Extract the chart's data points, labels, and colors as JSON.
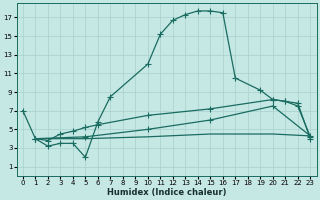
{
  "xlabel": "Humidex (Indice chaleur)",
  "background_color": "#c5e8e5",
  "grid_color": "#a8d0cc",
  "line_color": "#1a6b60",
  "xlim": [
    -0.5,
    23.5
  ],
  "ylim": [
    0,
    18.5
  ],
  "xticks": [
    0,
    1,
    2,
    3,
    4,
    5,
    6,
    7,
    8,
    9,
    10,
    11,
    12,
    13,
    14,
    15,
    16,
    17,
    18,
    19,
    20,
    21,
    22,
    23
  ],
  "yticks": [
    1,
    3,
    5,
    7,
    9,
    11,
    13,
    15,
    17
  ],
  "series1_x": [
    0,
    1,
    2,
    3,
    4,
    5,
    6,
    7,
    10,
    11,
    12,
    13,
    14,
    15,
    16,
    17,
    19,
    20,
    21,
    22,
    23
  ],
  "series1_y": [
    7,
    4,
    3.2,
    3.5,
    3.5,
    2,
    5.8,
    8.5,
    12.0,
    15.2,
    16.7,
    17.3,
    17.7,
    17.7,
    17.5,
    10.5,
    9.2,
    8.2,
    8.0,
    7.8,
    4.0
  ],
  "series2_x": [
    1,
    2,
    3,
    4,
    5,
    6,
    10,
    15,
    20,
    21,
    22,
    23
  ],
  "series2_y": [
    4,
    3.8,
    4.5,
    4.8,
    5.2,
    5.5,
    6.5,
    7.2,
    8.2,
    8.0,
    7.5,
    4.2
  ],
  "series3_x": [
    1,
    5,
    10,
    15,
    20,
    23
  ],
  "series3_y": [
    4.0,
    4.2,
    5.0,
    6.0,
    7.5,
    4.3
  ],
  "series4_x": [
    1,
    5,
    10,
    15,
    20,
    23
  ],
  "series4_y": [
    4.0,
    4.0,
    4.2,
    4.5,
    4.5,
    4.3
  ]
}
